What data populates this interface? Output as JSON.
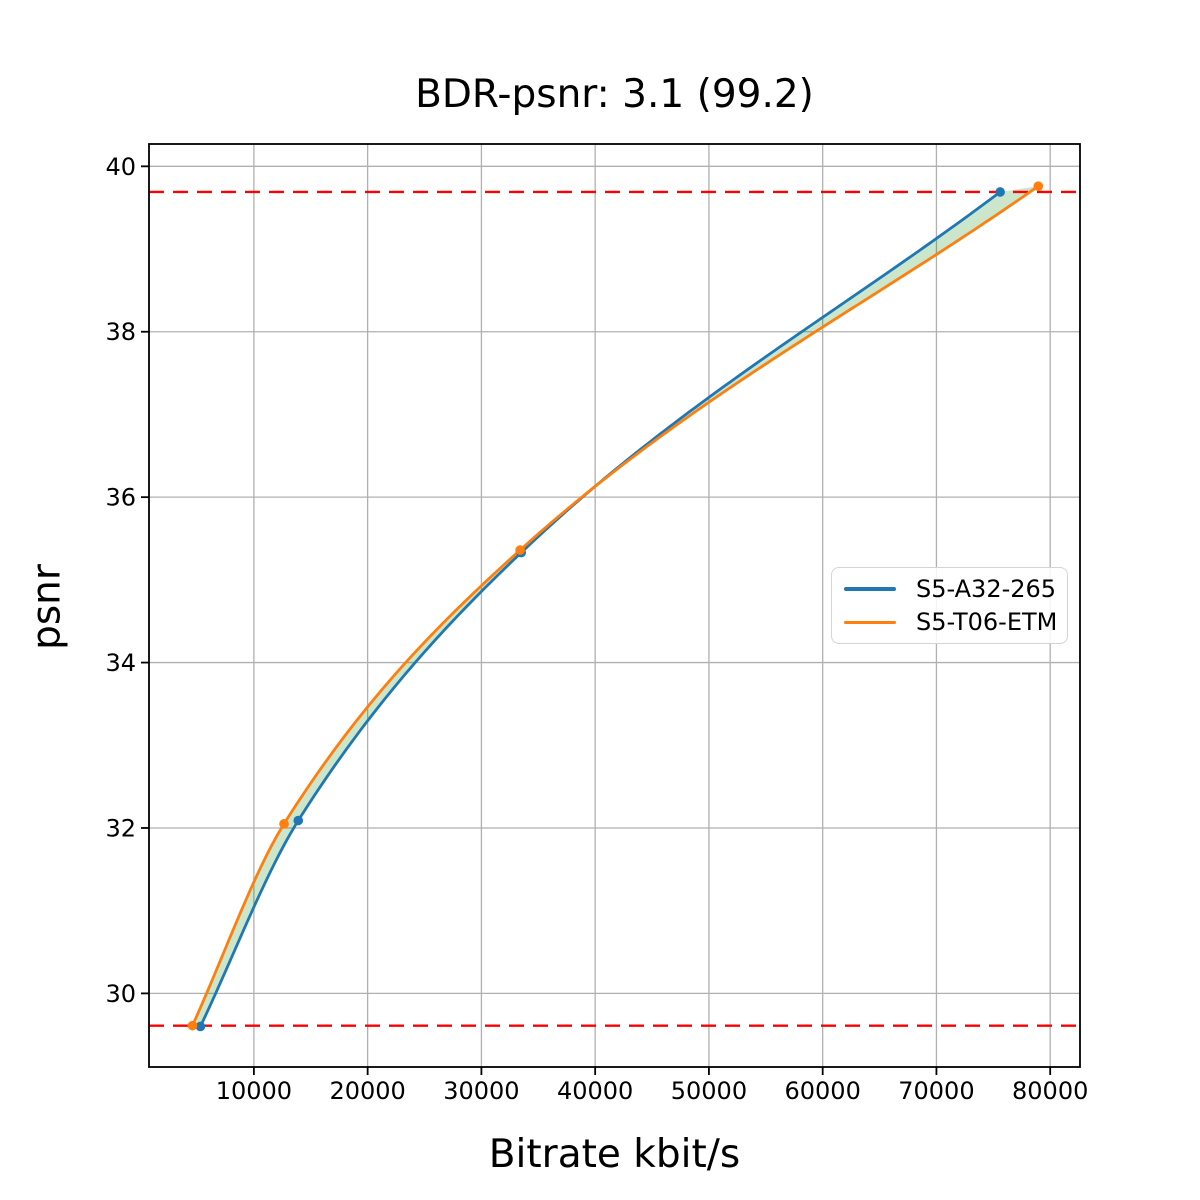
{
  "chart_data": {
    "type": "line",
    "title": "BDR-psnr: 3.1 (99.2)",
    "xlabel": "Bitrate kbit/s",
    "ylabel": "psnr",
    "xlim": [
      780,
      82620
    ],
    "ylim": [
      29.11,
      40.27
    ],
    "x_ticks": [
      10000,
      20000,
      30000,
      40000,
      50000,
      60000,
      70000,
      80000
    ],
    "y_ticks": [
      30,
      32,
      34,
      36,
      38,
      40
    ],
    "grid": true,
    "grid_color": "#b0b0b0",
    "axis_color": "#000000",
    "legend_position": "center-right",
    "series": [
      {
        "name": "S5-A32-265",
        "color": "#1f77b4",
        "x": [
          5300,
          13900,
          33500,
          75600
        ],
        "y": [
          29.6,
          32.09,
          35.33,
          39.69
        ]
      },
      {
        "name": "S5-T06-ETM",
        "color": "#ff7f0e",
        "x": [
          4600,
          12650,
          33400,
          78950
        ],
        "y": [
          29.61,
          32.05,
          35.36,
          39.76
        ]
      }
    ],
    "hlines": [
      {
        "y": 39.69,
        "color": "#ff0000",
        "style": "dashed"
      },
      {
        "y": 29.61,
        "color": "#ff0000",
        "style": "dashed"
      }
    ],
    "fill_between_color": "rgba(0, 128, 0, 0.2)"
  }
}
